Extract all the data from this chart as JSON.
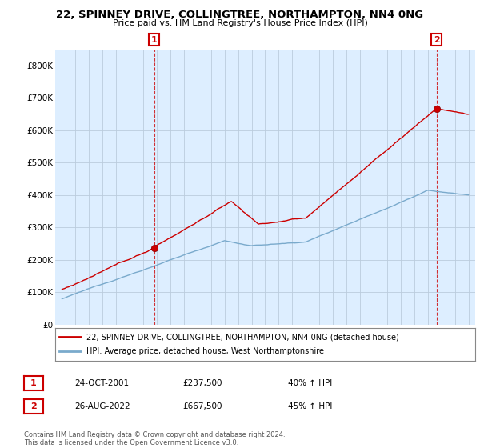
{
  "title1": "22, SPINNEY DRIVE, COLLINGTREE, NORTHAMPTON, NN4 0NG",
  "title2": "Price paid vs. HM Land Registry's House Price Index (HPI)",
  "legend_line1": "22, SPINNEY DRIVE, COLLINGTREE, NORTHAMPTON, NN4 0NG (detached house)",
  "legend_line2": "HPI: Average price, detached house, West Northamptonshire",
  "annotation1_date": "24-OCT-2001",
  "annotation1_price": "£237,500",
  "annotation1_hpi": "40% ↑ HPI",
  "annotation2_date": "26-AUG-2022",
  "annotation2_price": "£667,500",
  "annotation2_hpi": "45% ↑ HPI",
  "footnote": "Contains HM Land Registry data © Crown copyright and database right 2024.\nThis data is licensed under the Open Government Licence v3.0.",
  "red_color": "#cc0000",
  "blue_color": "#7aaacc",
  "plot_bg_color": "#ddeeff",
  "background_color": "#ffffff",
  "grid_color": "#bbccdd",
  "ylim": [
    0,
    850000
  ],
  "yticks": [
    0,
    100000,
    200000,
    300000,
    400000,
    500000,
    600000,
    700000,
    800000
  ],
  "ytick_labels": [
    "£0",
    "£100K",
    "£200K",
    "£300K",
    "£400K",
    "£500K",
    "£600K",
    "£700K",
    "£800K"
  ],
  "sale1_year": 2001.8,
  "sale1_price": 237500,
  "sale2_year": 2022.65,
  "sale2_price": 667500
}
